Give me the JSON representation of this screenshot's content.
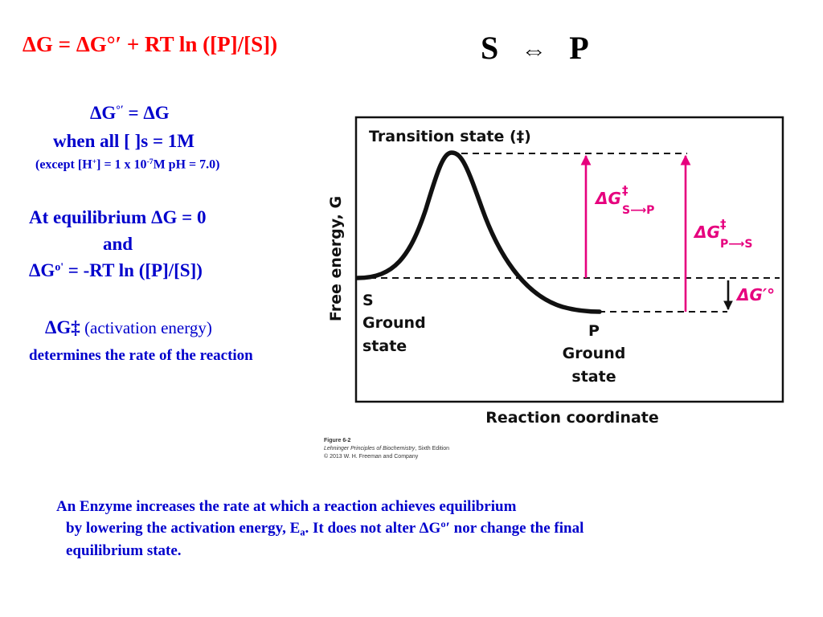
{
  "header": {
    "equation": "ΔG  =  ΔG°′ + RT ln ([P]/[S])",
    "reaction_s": "S",
    "reaction_arrow": "⇔",
    "reaction_p": "P"
  },
  "notes": {
    "std_def_lhs": "ΔG",
    "std_def_sup": "°′",
    "std_def_rhs": " = ΔG",
    "when_all": "when all [ ]s = 1M",
    "except_a": "(except [H",
    "except_plus": "+",
    "except_b": "] = 1 x 10",
    "except_exp": "-7",
    "except_c": "M pH = 7.0)",
    "equilibrium_1": "At equilibrium ΔG = 0",
    "and": "and",
    "eq2_a": "ΔG",
    "eq2_sup": "o'",
    "eq2_b": " = -RT ln ([P]/[S])",
    "activation_a": "ΔG‡",
    "activation_b": " (activation energy)",
    "rate": "determines the rate of the reaction"
  },
  "figure": {
    "title": "Transition state (‡)",
    "y_label": "Free energy, G",
    "x_label": "Reaction coordinate",
    "s_label": "S",
    "s_ground": "Ground",
    "s_state": "state",
    "p_label": "P",
    "p_ground": "Ground",
    "p_state": "state",
    "dg_sp_main": "ΔG",
    "dg_sp_sup": "‡",
    "dg_sp_sub": "S⟶P",
    "dg_ps_main": "ΔG",
    "dg_ps_sup": "‡",
    "dg_ps_sub": "P⟶S",
    "dg_std": "ΔG′°",
    "colors": {
      "magenta": "#e6007e",
      "black": "#111111"
    }
  },
  "caption": {
    "line1": "Figure 6-2",
    "line2_italic": "Lehninger Principles of Biochemistry",
    "line2_rest": ", Sixth Edition",
    "line3": "© 2013 W. H. Freeman and Company"
  },
  "footer": {
    "line1": "An Enzyme increases the rate at which a reaction achieves equilibrium",
    "line2_a": "by lowering the activation energy, E",
    "line2_sub": "a",
    "line2_b": ".  It does not alter ΔGº′  nor change the final",
    "line3": "equilibrium state."
  }
}
